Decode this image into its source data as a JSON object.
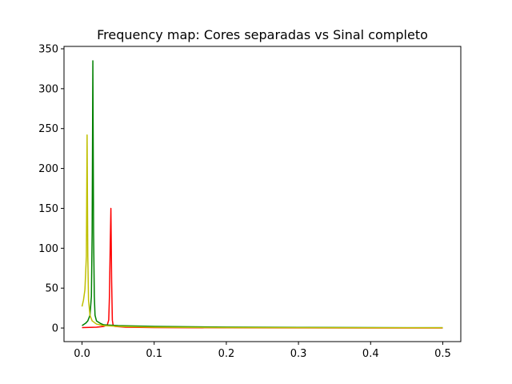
{
  "chart_data": {
    "type": "line",
    "title": "Frequency map: Cores separadas vs Sinal completo",
    "xlabel": "",
    "ylabel": "",
    "xlim": [
      -0.025,
      0.525
    ],
    "ylim": [
      -17,
      353
    ],
    "xticks": [
      0.0,
      0.1,
      0.2,
      0.3,
      0.4,
      0.5
    ],
    "xtick_labels": [
      "0.0",
      "0.1",
      "0.2",
      "0.3",
      "0.4",
      "0.5"
    ],
    "yticks": [
      0,
      50,
      100,
      150,
      200,
      250,
      300,
      350
    ],
    "ytick_labels": [
      "0",
      "50",
      "100",
      "150",
      "200",
      "250",
      "300",
      "350"
    ],
    "grid": false,
    "legend": "none",
    "series": [
      {
        "color": "#ff0000",
        "x": [
          0.0,
          0.02,
          0.03,
          0.035,
          0.037,
          0.038,
          0.039,
          0.04,
          0.041,
          0.042,
          0.043,
          0.045,
          0.06,
          0.1,
          0.2,
          0.3,
          0.4,
          0.5
        ],
        "y": [
          0.5,
          1,
          2,
          4,
          10,
          40,
          100,
          150,
          60,
          10,
          4,
          2,
          1,
          0.5,
          0.3,
          0.2,
          0.1,
          0.1
        ]
      },
      {
        "color": "#008000",
        "x": [
          0.0,
          0.005,
          0.008,
          0.011,
          0.013,
          0.014,
          0.015,
          0.016,
          0.017,
          0.018,
          0.02,
          0.025,
          0.03,
          0.05,
          0.1,
          0.2,
          0.3,
          0.4,
          0.5
        ],
        "y": [
          3,
          6,
          9,
          16,
          40,
          120,
          335,
          120,
          40,
          16,
          9,
          6,
          4,
          3,
          2,
          1.2,
          0.8,
          0.5,
          0.4
        ]
      },
      {
        "color": "#bfbf00",
        "x": [
          0.0,
          0.002,
          0.004,
          0.006,
          0.007,
          0.008,
          0.009,
          0.011,
          0.014,
          0.02,
          0.03,
          0.05,
          0.1,
          0.2,
          0.3,
          0.4,
          0.5
        ],
        "y": [
          27,
          35,
          48,
          90,
          242,
          90,
          35,
          16,
          9,
          5,
          3,
          2,
          1,
          0.6,
          0.4,
          0.3,
          0.3
        ]
      }
    ]
  }
}
